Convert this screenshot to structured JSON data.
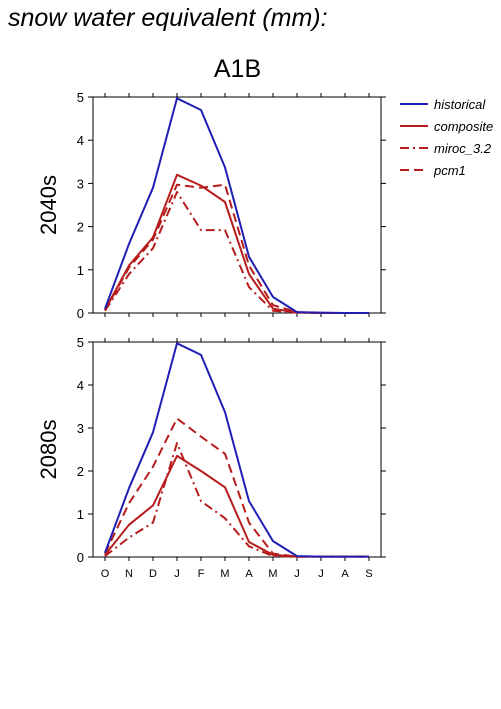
{
  "page": {
    "title": "snow water equivalent (mm):",
    "scenario": "A1B"
  },
  "colors": {
    "historical": "#1f1fb4",
    "models": "#b71c1c"
  },
  "chart_data": {
    "type": "line",
    "x": [
      "O",
      "N",
      "D",
      "J",
      "F",
      "M",
      "A",
      "M",
      "J",
      "J",
      "A",
      "S"
    ],
    "ylim": [
      0,
      5
    ],
    "yticks": [
      "0",
      "1",
      "2",
      "3",
      "4",
      "5"
    ],
    "grid": false,
    "legend_position": "right",
    "legend": [
      {
        "name": "historical",
        "color": "#1f1fb4",
        "dash": "solid"
      },
      {
        "name": "composite",
        "color": "#b71c1c",
        "dash": "solid"
      },
      {
        "name": "miroc_3.2",
        "color": "#b71c1c",
        "dash": "dashdot"
      },
      {
        "name": "pcm1",
        "color": "#b71c1c",
        "dash": "dashed"
      }
    ],
    "panels": [
      {
        "label": "2040s",
        "series": [
          {
            "name": "historical",
            "values": [
              0.1,
              1.6,
              2.9,
              4.97,
              4.7,
              3.37,
              1.3,
              0.37,
              0.02,
              0.01,
              0.0,
              0.0
            ]
          },
          {
            "name": "composite",
            "values": [
              0.07,
              1.1,
              1.75,
              3.2,
              2.95,
              2.57,
              0.9,
              0.1,
              0.01,
              0.0,
              0.0,
              0.0
            ]
          },
          {
            "name": "miroc_3.2",
            "values": [
              0.05,
              0.9,
              1.5,
              2.8,
              1.92,
              1.92,
              0.6,
              0.05,
              0.01,
              0.0,
              0.0,
              0.0
            ]
          },
          {
            "name": "pcm1",
            "values": [
              0.06,
              1.05,
              1.7,
              2.97,
              2.9,
              2.97,
              1.1,
              0.18,
              0.02,
              0.0,
              0.0,
              0.0
            ]
          }
        ]
      },
      {
        "label": "2080s",
        "series": [
          {
            "name": "historical",
            "values": [
              0.1,
              1.6,
              2.9,
              4.97,
              4.7,
              3.37,
              1.3,
              0.37,
              0.02,
              0.01,
              0.01,
              0.01
            ]
          },
          {
            "name": "composite",
            "values": [
              0.05,
              0.75,
              1.2,
              2.35,
              2.0,
              1.62,
              0.35,
              0.05,
              0.01,
              0.01,
              0.01,
              0.01
            ]
          },
          {
            "name": "miroc_3.2",
            "values": [
              0.02,
              0.45,
              0.8,
              2.65,
              1.3,
              0.9,
              0.25,
              0.02,
              0.01,
              0.01,
              0.01,
              0.01
            ]
          },
          {
            "name": "pcm1",
            "values": [
              0.08,
              1.25,
              2.1,
              3.22,
              2.8,
              2.4,
              0.8,
              0.08,
              0.01,
              0.01,
              0.01,
              0.01
            ]
          }
        ]
      }
    ]
  }
}
